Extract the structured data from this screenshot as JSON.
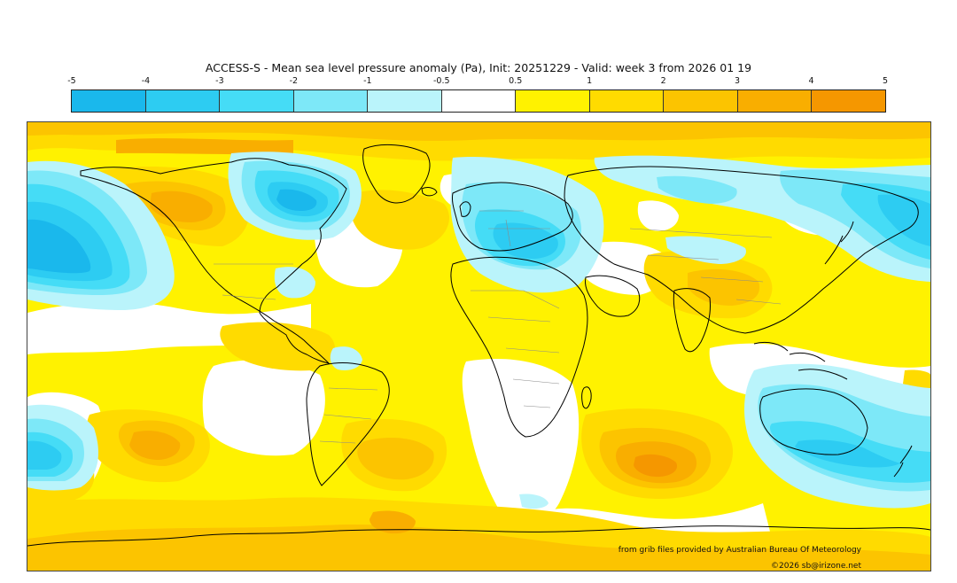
{
  "title": "ACCESS-S - Mean sea level pressure anomaly (Pa), Init: 20251229 - Valid: week 3 from 2026 01 19",
  "colorbar": {
    "ticks": [
      "-5",
      "-4",
      "-3",
      "-2",
      "-1",
      "-0.5",
      "0.5",
      "1",
      "2",
      "3",
      "4",
      "5"
    ],
    "colors": [
      "#1ab8ec",
      "#2dccf2",
      "#45dcf6",
      "#7de8f8",
      "#baf4fb",
      "#ffffff",
      "#fff200",
      "#ffdb00",
      "#fcc400",
      "#f9ae00",
      "#f59700"
    ]
  },
  "map": {
    "coastline_color": "#000000",
    "border_color": "#8a8a8a"
  },
  "footer": {
    "source": "from grib files provided by Australian Bureau Of Meteorology",
    "copyright": "©2026 sb@irizone.net"
  }
}
